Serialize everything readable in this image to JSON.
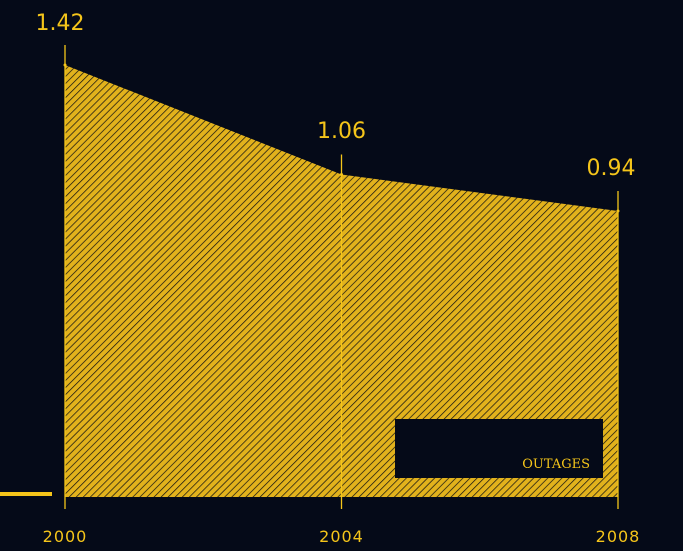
{
  "colors": {
    "background": "#050a18",
    "accent": "#f5c51a"
  },
  "chart_data": {
    "type": "area",
    "x": [
      2000,
      2004,
      2008
    ],
    "series": [
      {
        "name": "OUTAGES",
        "values": [
          1.42,
          1.06,
          0.94
        ]
      }
    ],
    "data_labels": [
      "1.42",
      "1.06",
      "0.94"
    ],
    "tick_labels": [
      "2000",
      "2004",
      "2008"
    ],
    "ylim": [
      0,
      1.42
    ],
    "fill_pattern": "diagonal-hatch",
    "legend_placement": "bottom-right",
    "grid": false
  },
  "legend": {
    "label": "OUTAGES"
  }
}
